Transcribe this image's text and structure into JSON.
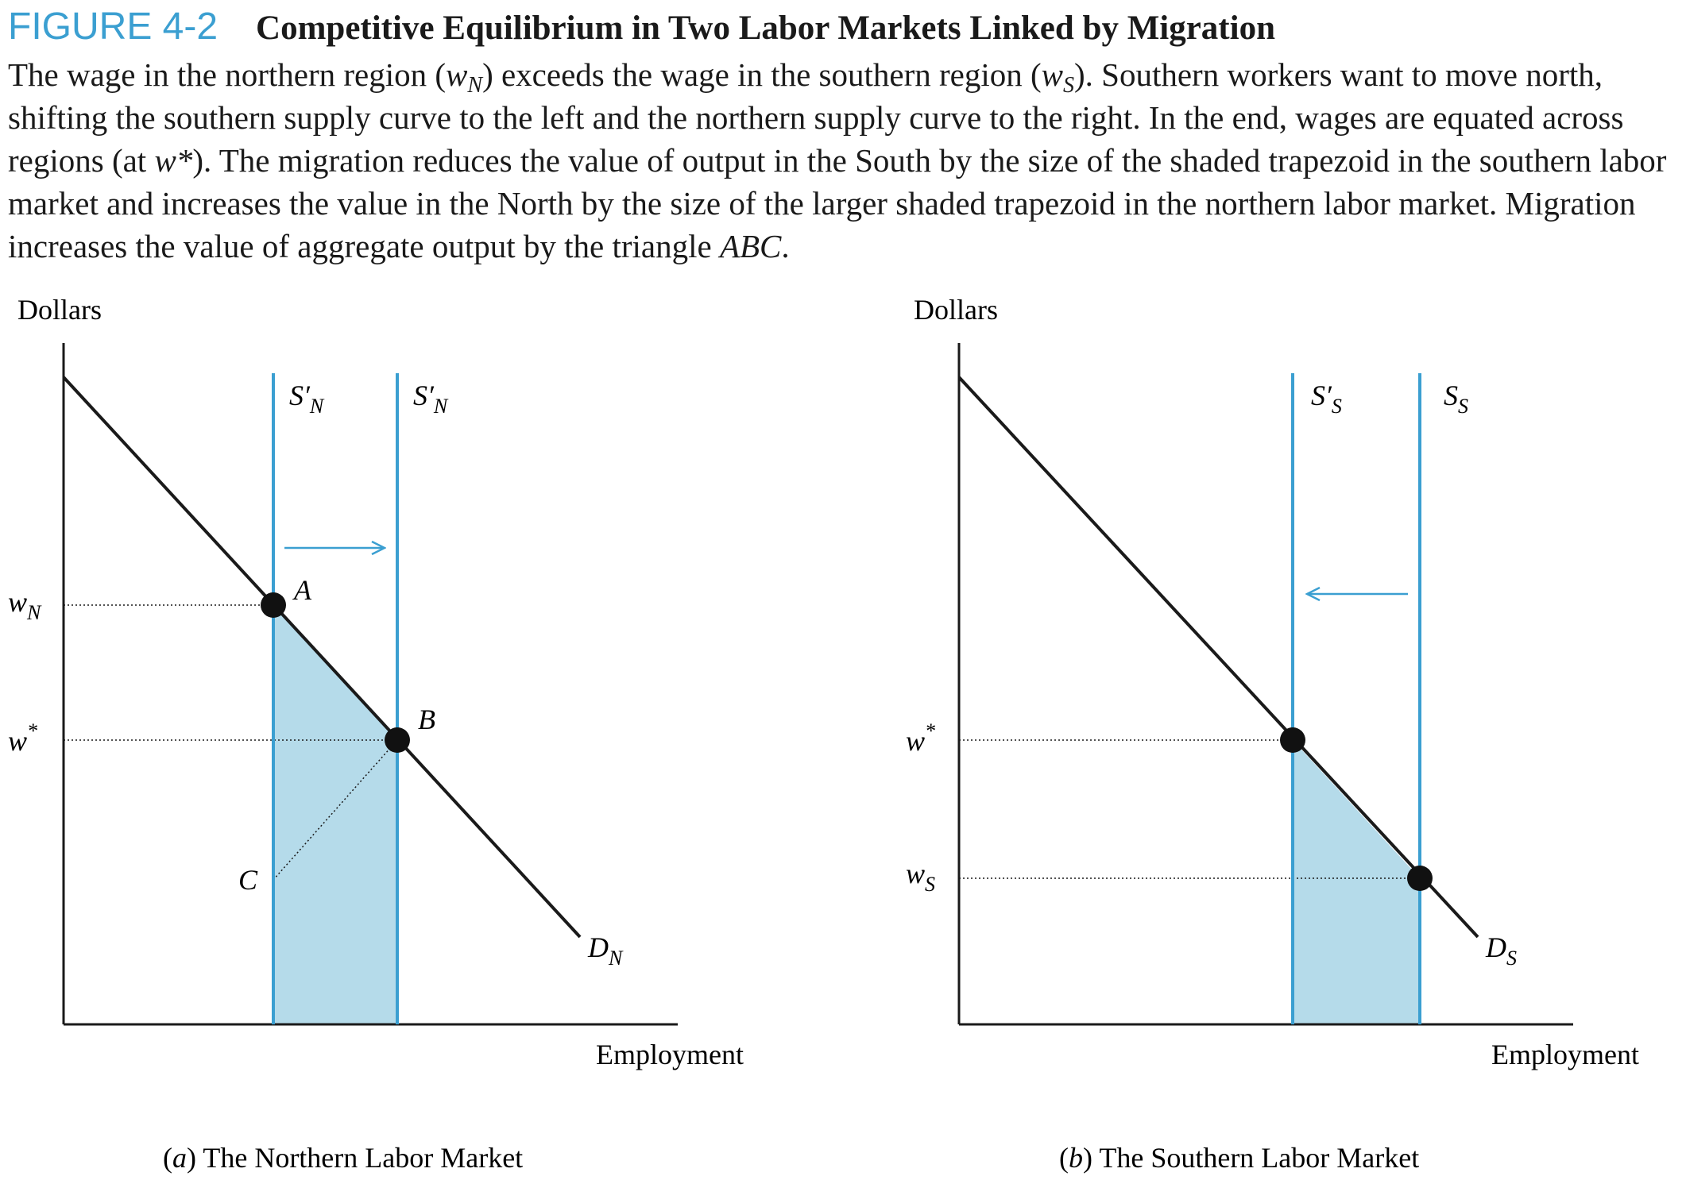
{
  "figure": {
    "label": "FIGURE 4-2",
    "title": "Competitive Equilibrium in Two Labor Markets Linked by Migration",
    "caption": {
      "s1": "The wage in the northern region (",
      "wN_w": "w",
      "wN_sub": "N",
      "s2": ") exceeds the wage in the southern region (",
      "wS_w": "w",
      "wS_sub": "S",
      "s3": "). Southern workers want to move north, shifting the southern supply curve to the left and the northern supply curve to the right. In the end, wages are equated across regions (at ",
      "wstar": "w*",
      "s4": "). The migration reduces the value of output in the South by the size of the shaded trapezoid in the southern labor market and increases the value in the North by the size of the larger shaded trapezoid in the northern labor market. Migration increases the value of aggregate output by the triangle ",
      "abc": "ABC",
      "s5": "."
    }
  },
  "north": {
    "y_axis_label": "Dollars",
    "x_axis_label": "Employment",
    "panel_letter": "a",
    "panel_title": " The Northern Labor Market",
    "supply_left": {
      "base": "S",
      "prime": "′",
      "sub": "N"
    },
    "supply_right": {
      "base": "S",
      "prime": "′",
      "sub": "N"
    },
    "demand": {
      "base": "D",
      "sub": "N"
    },
    "wage_high": {
      "base": "w",
      "sub": "N"
    },
    "wage_eq": {
      "base": "w",
      "sup": "*"
    },
    "point_a": "A",
    "point_b": "B",
    "point_c": "C"
  },
  "south": {
    "y_axis_label": "Dollars",
    "x_axis_label": "Employment",
    "panel_letter": "b",
    "panel_title": " The Southern Labor Market",
    "supply_left": {
      "base": "S",
      "prime": "′",
      "sub": "S"
    },
    "supply_right": {
      "base": "S",
      "sub": "S"
    },
    "demand": {
      "base": "D",
      "sub": "S"
    },
    "wage_eq": {
      "base": "w",
      "sup": "*"
    },
    "wage_low": {
      "base": "w",
      "sub": "S"
    }
  },
  "colors": {
    "supply": "#3b9fd1",
    "shade": "#b5dbea",
    "axis": "#1a1a1a",
    "arrow": "#3b9fd1"
  }
}
